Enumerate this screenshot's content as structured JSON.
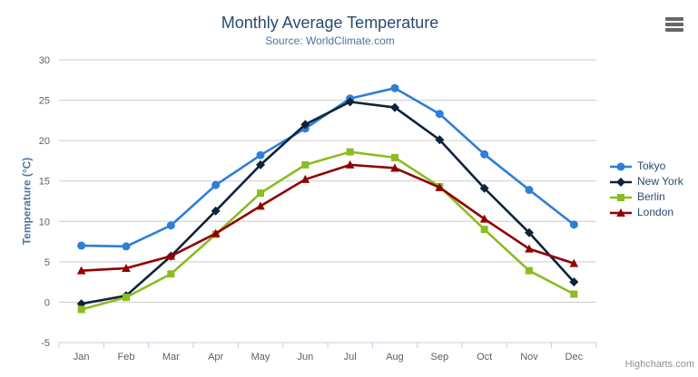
{
  "chart_data": {
    "type": "line",
    "title": "Monthly Average Temperature",
    "subtitle": "Source: WorldClimate.com",
    "xlabel": "",
    "ylabel": "Temperature (°C)",
    "ylim": [
      -5,
      30
    ],
    "ytick_step": 5,
    "grid": true,
    "legend_position": "right",
    "categories": [
      "Jan",
      "Feb",
      "Mar",
      "Apr",
      "May",
      "Jun",
      "Jul",
      "Aug",
      "Sep",
      "Oct",
      "Nov",
      "Dec"
    ],
    "series": [
      {
        "name": "Tokyo",
        "color": "#2f7ed8",
        "marker": "circle",
        "values": [
          7.0,
          6.9,
          9.5,
          14.5,
          18.2,
          21.5,
          25.2,
          26.5,
          23.3,
          18.3,
          13.9,
          9.6
        ]
      },
      {
        "name": "New York",
        "color": "#0d233a",
        "marker": "diamond",
        "values": [
          -0.2,
          0.8,
          5.7,
          11.3,
          17.0,
          22.0,
          24.8,
          24.1,
          20.1,
          14.1,
          8.6,
          2.5
        ]
      },
      {
        "name": "Berlin",
        "color": "#8bbc21",
        "marker": "square",
        "values": [
          -0.9,
          0.6,
          3.5,
          8.4,
          13.5,
          17.0,
          18.6,
          17.9,
          14.3,
          9.0,
          3.9,
          1.0
        ]
      },
      {
        "name": "London",
        "color": "#910000",
        "marker": "triangle",
        "values": [
          3.9,
          4.2,
          5.7,
          8.5,
          11.9,
          15.2,
          17.0,
          16.6,
          14.2,
          10.3,
          6.6,
          4.8
        ]
      }
    ],
    "colors": {
      "grid_line": "#cccccc",
      "axis_line": "#c0d0e0",
      "axis_label": "#606060",
      "title": "#274b6d",
      "subtitle": "#4d759e",
      "y_axis_title": "#4d759e",
      "legend_text": "#274b6d"
    }
  },
  "credits": {
    "label": "Highcharts.com"
  }
}
